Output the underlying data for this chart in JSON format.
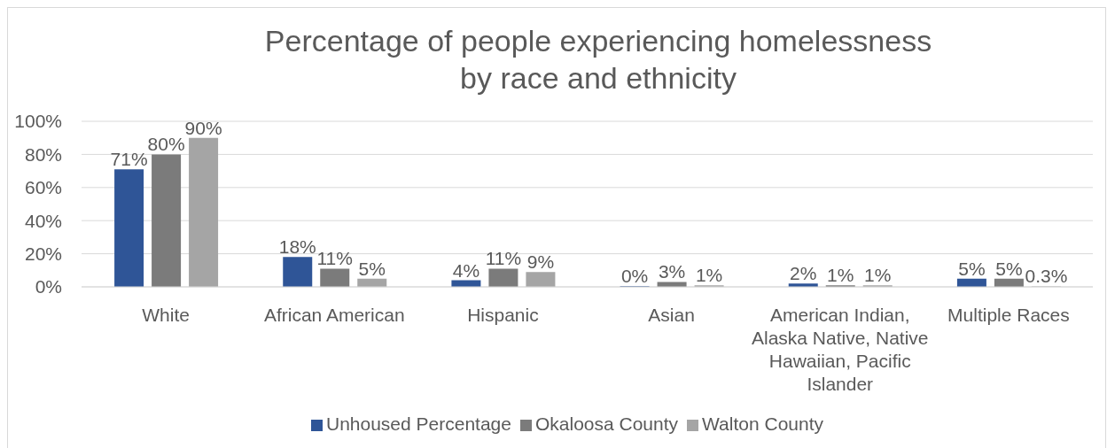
{
  "chart_data": {
    "type": "bar",
    "title": "Percentage of people experiencing homelessness by race and ethnicity",
    "categories": [
      "White",
      "African American",
      "Hispanic",
      "Asian",
      "American Indian, Alaska Native, Native Hawaiian, Pacific Islander",
      "Multiple Races"
    ],
    "series": [
      {
        "name": "Unhoused Percentage",
        "color": "#2f5597",
        "values": [
          71,
          18,
          4,
          0.4,
          2,
          5
        ],
        "value_labels": [
          "71%",
          "18%",
          "4%",
          "0%",
          "2%",
          "5%"
        ]
      },
      {
        "name": "Okaloosa County",
        "color": "#7b7b7b",
        "values": [
          80,
          11,
          11,
          3,
          1,
          5
        ],
        "value_labels": [
          "80%",
          "11%",
          "11%",
          "3%",
          "1%",
          "5%"
        ]
      },
      {
        "name": "Walton County",
        "color": "#a5a5a5",
        "values": [
          90,
          5,
          9,
          1,
          1,
          0.3
        ],
        "value_labels": [
          "90%",
          "5%",
          "9%",
          "1%",
          "1%",
          "0.3%"
        ]
      }
    ],
    "ylim": [
      0,
      100
    ],
    "yticks": [
      {
        "value": 0,
        "label": "0%"
      },
      {
        "value": 20,
        "label": "20%"
      },
      {
        "value": 40,
        "label": "40%"
      },
      {
        "value": 60,
        "label": "60%"
      },
      {
        "value": 80,
        "label": "80%"
      },
      {
        "value": 100,
        "label": "100%"
      }
    ],
    "grid": "y",
    "legend": "bottom"
  }
}
